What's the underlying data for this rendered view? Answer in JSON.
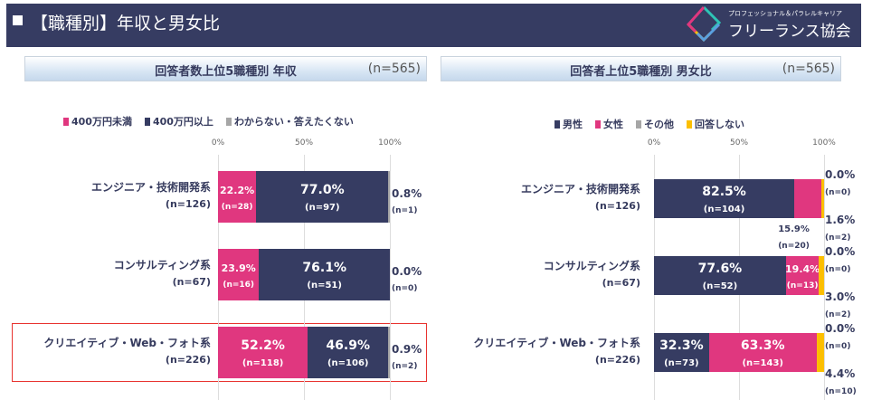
{
  "header": {
    "title": "【職種別】年収と男女比",
    "logo_sub": "プロフェッショナル＆パラレルキャリア",
    "logo_main": "フリーランス協会"
  },
  "colors": {
    "navy": "#363c62",
    "pink": "#e0377f",
    "gray": "#a6a6a6",
    "yellow": "#fcbf00",
    "highlight": "#e8332f"
  },
  "chart_data": [
    {
      "type": "bar",
      "orientation": "horizontal",
      "stacked": true,
      "title": "回答者数上位5職種別 年収",
      "n_label": "(n=565)",
      "xlim": [
        0,
        100
      ],
      "ticks": [
        "0%",
        "50%",
        "100%"
      ],
      "grid": true,
      "legend": "top-left",
      "categories": [
        {
          "name": "エンジニア・技術開発系",
          "n": "(n=126)"
        },
        {
          "name": "コンサルティング系",
          "n": "(n=67)"
        },
        {
          "name": "クリエイティブ・Web・フォト系",
          "n": "(n=226)",
          "highlighted": true
        }
      ],
      "series": [
        {
          "name": "400万円未満",
          "color": "#e0377f",
          "values": [
            22.2,
            23.9,
            52.2
          ],
          "labels": [
            "22.2%",
            "23.9%",
            "52.2%"
          ],
          "counts": [
            "(n=28)",
            "(n=16)",
            "(n=118)"
          ]
        },
        {
          "name": "400万円以上",
          "color": "#363c62",
          "values": [
            77.0,
            76.1,
            46.9
          ],
          "labels": [
            "77.0%",
            "76.1%",
            "46.9%"
          ],
          "counts": [
            "(n=97)",
            "(n=51)",
            "(n=106)"
          ]
        },
        {
          "name": "わからない・答えたくない",
          "color": "#a6a6a6",
          "values": [
            0.8,
            0.0,
            0.9
          ],
          "labels": [
            "0.8%",
            "0.0%",
            "0.9%"
          ],
          "counts": [
            "(n=1)",
            "(n=0)",
            "(n=2)"
          ]
        }
      ]
    },
    {
      "type": "bar",
      "orientation": "horizontal",
      "stacked": true,
      "title": "回答者上位5職種別 男女比",
      "n_label": "(n=565)",
      "xlim": [
        0,
        100
      ],
      "ticks": [
        "0%",
        "50%",
        "100%"
      ],
      "grid": true,
      "legend": "top-left",
      "categories": [
        {
          "name": "エンジニア・技術開発系",
          "n": "(n=126)"
        },
        {
          "name": "コンサルティング系",
          "n": "(n=67)"
        },
        {
          "name": "クリエイティブ・Web・フォト系",
          "n": "(n=226)"
        }
      ],
      "series": [
        {
          "name": "男性",
          "color": "#363c62",
          "values": [
            82.5,
            77.6,
            32.3
          ],
          "labels": [
            "82.5%",
            "77.6%",
            "32.3%"
          ],
          "counts": [
            "(n=104)",
            "(n=52)",
            "(n=73)"
          ]
        },
        {
          "name": "女性",
          "color": "#e0377f",
          "values": [
            15.9,
            19.4,
            63.3
          ],
          "labels": [
            "15.9%",
            "19.4%",
            "63.3%"
          ],
          "counts": [
            "(n=20)",
            "(n=13)",
            "(n=143)"
          ]
        },
        {
          "name": "その他",
          "color": "#a6a6a6",
          "values": [
            0.0,
            0.0,
            0.0
          ],
          "labels": [
            "0.0%",
            "0.0%",
            "0.0%"
          ],
          "counts": [
            "(n=0)",
            "(n=0)",
            "(n=0)"
          ]
        },
        {
          "name": "回答しない",
          "color": "#fcbf00",
          "values": [
            1.6,
            3.0,
            4.4
          ],
          "labels": [
            "1.6%",
            "3.0%",
            "4.4%"
          ],
          "counts": [
            "(n=2)",
            "(n=2)",
            "(n=10)"
          ]
        }
      ]
    }
  ]
}
